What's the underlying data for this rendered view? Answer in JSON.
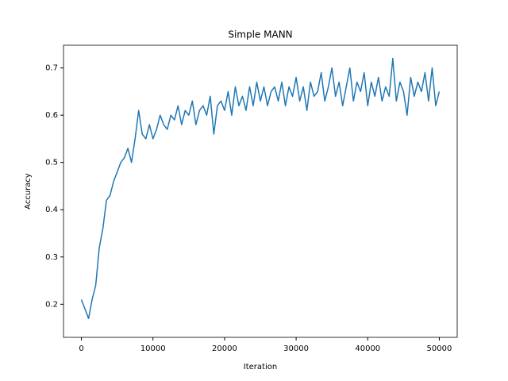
{
  "chart_data": {
    "type": "line",
    "title": "Simple MANN",
    "x_label": "Iteration",
    "y_label": "Accuracy",
    "x": [
      0,
      500,
      1000,
      1500,
      2000,
      2500,
      3000,
      3500,
      4000,
      4500,
      5000,
      5500,
      6000,
      6500,
      7000,
      7500,
      8000,
      8500,
      9000,
      9500,
      10000,
      10500,
      11000,
      11500,
      12000,
      12500,
      13000,
      13500,
      14000,
      14500,
      15000,
      15500,
      16000,
      16500,
      17000,
      17500,
      18000,
      18500,
      19000,
      19500,
      20000,
      20500,
      21000,
      21500,
      22000,
      22500,
      23000,
      23500,
      24000,
      24500,
      25000,
      25500,
      26000,
      26500,
      27000,
      27500,
      28000,
      28500,
      29000,
      29500,
      30000,
      30500,
      31000,
      31500,
      32000,
      32500,
      33000,
      33500,
      34000,
      34500,
      35000,
      35500,
      36000,
      36500,
      37000,
      37500,
      38000,
      38500,
      39000,
      39500,
      40000,
      40500,
      41000,
      41500,
      42000,
      42500,
      43000,
      43500,
      44000,
      44500,
      45000,
      45500,
      46000,
      46500,
      47000,
      47500,
      48000,
      48500,
      49000,
      49500,
      50000
    ],
    "values": [
      0.21,
      0.19,
      0.17,
      0.21,
      0.24,
      0.32,
      0.36,
      0.42,
      0.43,
      0.46,
      0.48,
      0.5,
      0.51,
      0.53,
      0.5,
      0.55,
      0.61,
      0.56,
      0.55,
      0.58,
      0.55,
      0.57,
      0.6,
      0.58,
      0.57,
      0.6,
      0.59,
      0.62,
      0.58,
      0.61,
      0.6,
      0.63,
      0.58,
      0.61,
      0.62,
      0.6,
      0.64,
      0.56,
      0.62,
      0.63,
      0.61,
      0.65,
      0.6,
      0.66,
      0.62,
      0.64,
      0.61,
      0.66,
      0.62,
      0.67,
      0.63,
      0.66,
      0.62,
      0.65,
      0.66,
      0.63,
      0.67,
      0.62,
      0.66,
      0.64,
      0.68,
      0.63,
      0.66,
      0.61,
      0.67,
      0.64,
      0.65,
      0.69,
      0.63,
      0.66,
      0.7,
      0.64,
      0.67,
      0.62,
      0.66,
      0.7,
      0.63,
      0.67,
      0.65,
      0.69,
      0.62,
      0.67,
      0.64,
      0.68,
      0.63,
      0.66,
      0.64,
      0.72,
      0.63,
      0.67,
      0.65,
      0.6,
      0.68,
      0.64,
      0.67,
      0.65,
      0.69,
      0.63,
      0.7,
      0.62,
      0.65
    ],
    "color": "#1f77b4",
    "xlim": [
      -2500,
      52500
    ],
    "xticks": [
      0,
      10000,
      20000,
      30000,
      40000,
      50000
    ],
    "ylim": [
      0.13,
      0.748
    ],
    "yticks": [
      0.2,
      0.3,
      0.4,
      0.5,
      0.6,
      0.7
    ]
  }
}
